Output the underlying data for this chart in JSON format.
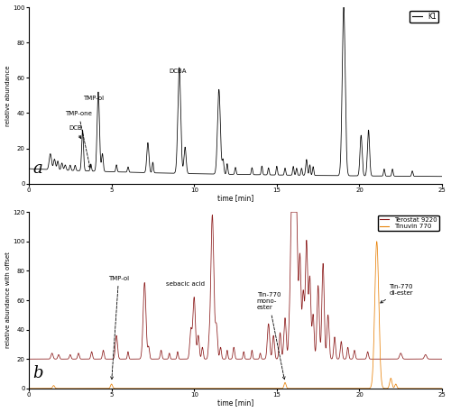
{
  "panel_a": {
    "title": "a",
    "ylabel": "relative abundance",
    "xlabel": "time [min]",
    "xlim": [
      0,
      25
    ],
    "ylim": [
      0,
      100
    ],
    "yticks": [
      0,
      20,
      40,
      60,
      80,
      100
    ],
    "color": "#000000",
    "legend_label": "K1"
  },
  "panel_b": {
    "title": "b",
    "ylabel": "relative abundance with offset",
    "xlabel": "time [min]",
    "xlim": [
      0,
      25
    ],
    "ylim": [
      0,
      120
    ],
    "yticks": [
      0,
      20,
      40,
      60,
      80,
      100,
      120
    ],
    "color_terostat": "#8B1A1A",
    "color_tinuvin": "#E8820A",
    "legend_label_1": "Terostat 9220",
    "legend_label_2": "Tinuvin 770"
  },
  "figsize": [
    5.0,
    4.57
  ],
  "dpi": 100
}
